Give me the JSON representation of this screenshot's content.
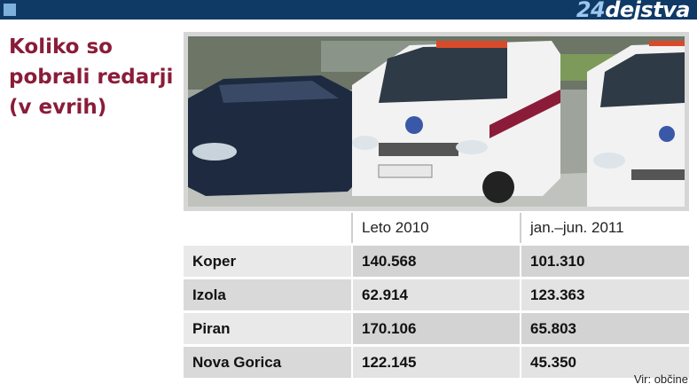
{
  "header": {
    "logo_num": "24",
    "logo_text": "dejstva"
  },
  "title": "Koliko so\npobrali redarji\n(v evrih)",
  "table": {
    "columns": [
      "Leto 2010",
      "jan.–jun. 2011"
    ],
    "rows": [
      {
        "name": "Koper",
        "v2010": "140.568",
        "v2011": "101.310"
      },
      {
        "name": "Izola",
        "v2010": "62.914",
        "v2011": "123.363"
      },
      {
        "name": "Piran",
        "v2010": "170.106",
        "v2011": "65.803"
      },
      {
        "name": "Nova Gorica",
        "v2010": "122.145",
        "v2011": "45.350"
      }
    ]
  },
  "source": "Vir: občine",
  "colors": {
    "topbar": "#0f3a66",
    "title": "#8a1c3a"
  },
  "photo": {
    "subject": "municipal warden vans parked next to a dark car"
  }
}
